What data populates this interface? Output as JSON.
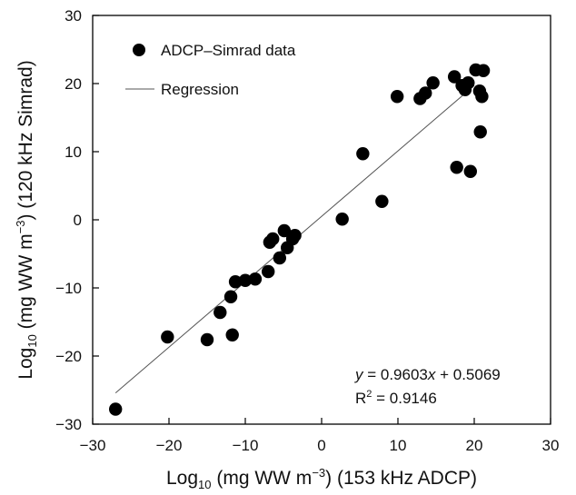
{
  "chart_data": {
    "type": "scatter",
    "xlabel": {
      "prefix": "Log",
      "sub": "10",
      "main": " (mg WW m",
      "sup": "−3",
      "suffix": ") (153 kHz ADCP)"
    },
    "ylabel": {
      "prefix": "Log",
      "sub": "10",
      "main": " (mg WW m",
      "sup": "−3",
      "suffix": ") (120 kHz Simrad)"
    },
    "xlim": [
      -30,
      30
    ],
    "ylim": [
      -30,
      30
    ],
    "xticks": [
      -30,
      -20,
      -10,
      0,
      10,
      20,
      30
    ],
    "yticks": [
      -30,
      -20,
      -10,
      0,
      10,
      20,
      30
    ],
    "xtick_labels": [
      "−30",
      "−20",
      "−10",
      "0",
      "10",
      "20",
      "30"
    ],
    "ytick_labels": [
      "−30",
      "−20",
      "−10",
      "0",
      "10",
      "20",
      "30"
    ],
    "grid": false,
    "legend": {
      "position": "top-left",
      "entries": [
        {
          "label": "ADCP–Simrad data",
          "marker": "circle"
        },
        {
          "label": "Regression",
          "marker": "line"
        }
      ]
    },
    "annotation": {
      "position": "bottom-right",
      "equation_y": "y",
      "equation_eq": " = 0.9603",
      "equation_x": "x",
      "equation_rest": " + 0.5069",
      "r2_base": "R",
      "r2_sup": "2",
      "r2_rest": " = 0.9146"
    },
    "regression": {
      "slope": 0.9603,
      "intercept": 0.5069,
      "x_range": [
        -27,
        20
      ]
    },
    "colors": {
      "points": "#000000",
      "line": "#555555",
      "axes": "#000000"
    },
    "series": [
      {
        "x": [
          -27.0,
          -20.2,
          -15.0,
          -13.3,
          -11.9,
          -11.7,
          -11.3,
          -10.0,
          -8.7,
          -7.0,
          -6.8,
          -6.4,
          -5.5,
          -4.9,
          -4.5,
          -3.8,
          -3.5,
          2.7,
          5.4,
          7.9,
          9.9,
          12.9,
          13.6,
          14.6,
          17.4,
          17.7,
          18.4,
          18.8,
          19.2,
          19.5,
          20.2,
          20.7,
          20.8,
          21.0,
          21.2
        ],
        "y": [
          -27.8,
          -17.2,
          -17.6,
          -13.6,
          -11.3,
          -16.9,
          -9.1,
          -8.9,
          -8.7,
          -7.6,
          -3.3,
          -2.8,
          -5.6,
          -1.6,
          -4.1,
          -2.8,
          -2.3,
          0.1,
          9.7,
          2.7,
          18.1,
          17.8,
          18.6,
          20.1,
          21.0,
          7.7,
          19.7,
          19.1,
          20.1,
          7.1,
          22.0,
          18.9,
          12.9,
          18.1,
          21.9
        ]
      }
    ]
  }
}
